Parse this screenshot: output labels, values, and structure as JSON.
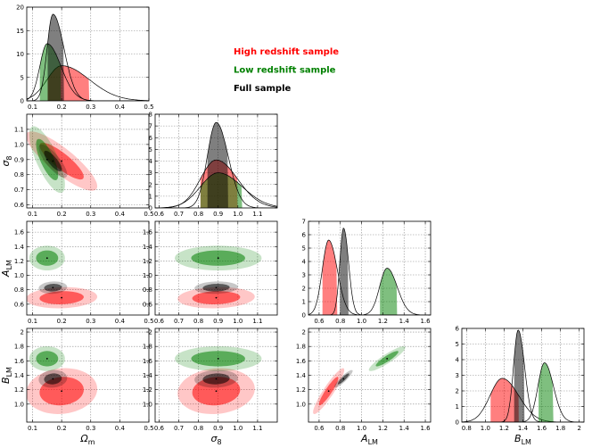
{
  "chart_data": {
    "type": "corner",
    "title": "",
    "parameters": [
      {
        "key": "om",
        "label_base": "Ω",
        "label_sub": "m",
        "xlim": [
          0.08,
          0.5
        ],
        "xticks": [
          0.1,
          0.2,
          0.3,
          0.4,
          0.5
        ]
      },
      {
        "key": "s8",
        "label_base": "σ",
        "label_sub": "8",
        "xlim": [
          0.58,
          1.2
        ],
        "xticks": [
          0.6,
          0.7,
          0.8,
          0.9,
          1.0,
          1.1
        ]
      },
      {
        "key": "alm",
        "label_base": "A",
        "label_sub": "LM",
        "xlim": [
          0.5,
          1.65
        ],
        "xticks": [
          0.6,
          0.8,
          1.0,
          1.2,
          1.4,
          1.6
        ]
      },
      {
        "key": "blm",
        "label_base": "B",
        "label_sub": "LM",
        "xlim": [
          0.75,
          2.05
        ],
        "xticks": [
          0.8,
          1.0,
          1.2,
          1.4,
          1.6,
          1.8,
          2.0
        ]
      }
    ],
    "y_axes": {
      "s8": {
        "ylim": [
          0.58,
          1.2
        ],
        "yticks": [
          0.6,
          0.7,
          0.8,
          0.9,
          1.0,
          1.1
        ]
      },
      "alm": {
        "ylim": [
          0.45,
          1.75
        ],
        "yticks": [
          0.6,
          0.8,
          1.0,
          1.2,
          1.4,
          1.6
        ]
      },
      "blm": {
        "ylim": [
          0.75,
          2.05
        ],
        "yticks": [
          1.0,
          1.2,
          1.4,
          1.6,
          1.8,
          2.0
        ]
      }
    },
    "diag_y": [
      {
        "ylim": [
          0,
          20
        ],
        "yticks": [
          0,
          5,
          10,
          15,
          20
        ]
      },
      {
        "ylim": [
          0,
          8
        ],
        "yticks": [
          0,
          1,
          2,
          3,
          4,
          5,
          6,
          7,
          8
        ]
      },
      {
        "ylim": [
          0,
          7
        ],
        "yticks": [
          0,
          1,
          2,
          3,
          4,
          5,
          6,
          7
        ]
      },
      {
        "ylim": [
          0,
          6
        ],
        "yticks": [
          0,
          1,
          2,
          3,
          4,
          5,
          6
        ]
      }
    ],
    "series": [
      {
        "name": "High redshift sample",
        "color": "#ff0000",
        "mean": {
          "om": 0.2,
          "s8": 0.89,
          "alm": 0.69,
          "blm": 1.18
        },
        "sd": {
          "om": 0.05,
          "s8": 0.08,
          "alm": 0.06,
          "blm": 0.13
        },
        "corr": {
          "om|s8": -0.85,
          "om|alm": 0.1,
          "om|blm": 0.1,
          "s8|alm": 0.1,
          "s8|blm": 0.1,
          "alm|blm": 0.92
        },
        "pdf_peak": [
          7.5,
          4.1,
          5.6,
          2.8
        ]
      },
      {
        "name": "Low redshift sample",
        "color": "#008000",
        "mean": {
          "om": 0.15,
          "s8": 0.9,
          "alm": 1.24,
          "blm": 1.63
        },
        "sd": {
          "om": 0.025,
          "s8": 0.09,
          "alm": 0.07,
          "blm": 0.07
        },
        "corr": {
          "om|s8": -0.75,
          "om|alm": 0.0,
          "om|blm": 0.0,
          "s8|alm": 0.0,
          "s8|blm": 0.0,
          "alm|blm": 0.9
        },
        "pdf_peak": [
          12.2,
          3.0,
          3.5,
          3.8
        ]
      },
      {
        "name": "Full sample",
        "color": "#000000",
        "mean": {
          "om": 0.17,
          "s8": 0.89,
          "alm": 0.83,
          "blm": 1.35
        },
        "sd": {
          "om": 0.02,
          "s8": 0.045,
          "alm": 0.035,
          "blm": 0.05
        },
        "corr": {
          "om|s8": -0.8,
          "om|alm": 0.1,
          "om|blm": 0.1,
          "s8|alm": 0.1,
          "s8|blm": 0.1,
          "alm|blm": 0.9
        },
        "pdf_peak": [
          18.5,
          7.3,
          6.5,
          5.9
        ]
      }
    ],
    "legend": {
      "placement": "top-right",
      "entries": [
        {
          "label": "High redshift sample",
          "color": "#ff0000"
        },
        {
          "label": "Low redshift sample",
          "color": "#008000"
        },
        {
          "label": "Full sample",
          "color": "#000000"
        }
      ]
    },
    "grid": true
  }
}
